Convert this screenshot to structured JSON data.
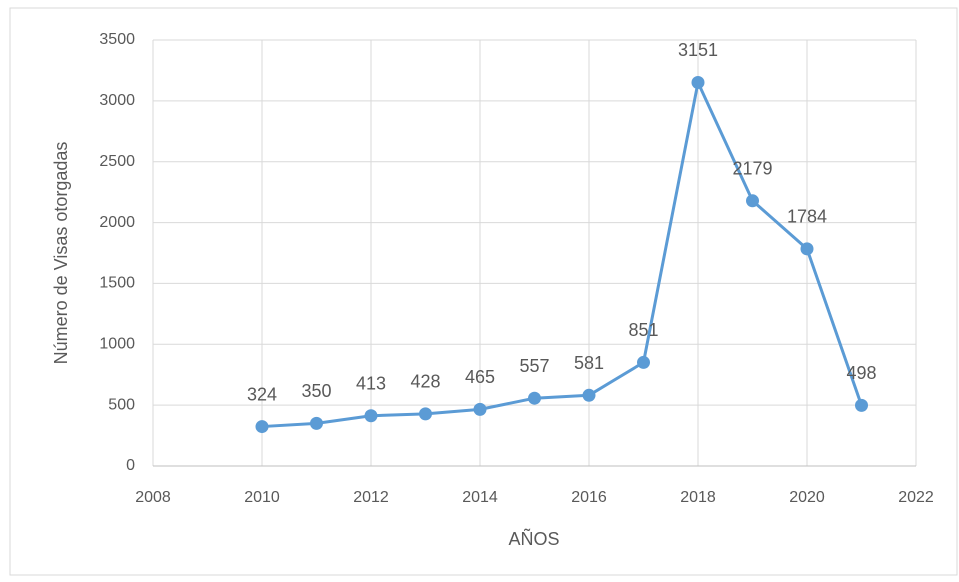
{
  "chart_data": {
    "type": "line",
    "x": [
      2010,
      2011,
      2012,
      2013,
      2014,
      2015,
      2016,
      2017,
      2018,
      2019,
      2020,
      2021
    ],
    "series": [
      {
        "color": "#5b9bd5",
        "values": [
          324,
          350,
          413,
          428,
          465,
          557,
          581,
          851,
          3151,
          2179,
          1784,
          498
        ]
      }
    ],
    "x_label": "AÑOS",
    "y_label": "Número de Visas otorgadas",
    "xlim": [
      2008,
      2022
    ],
    "xticks": [
      2008,
      2010,
      2012,
      2014,
      2016,
      2018,
      2020,
      2022
    ],
    "ylim": [
      0,
      3500
    ],
    "yticks": [
      0,
      500,
      1000,
      1500,
      2000,
      2500,
      3000,
      3500
    ],
    "grid": true,
    "data_labels": true
  }
}
